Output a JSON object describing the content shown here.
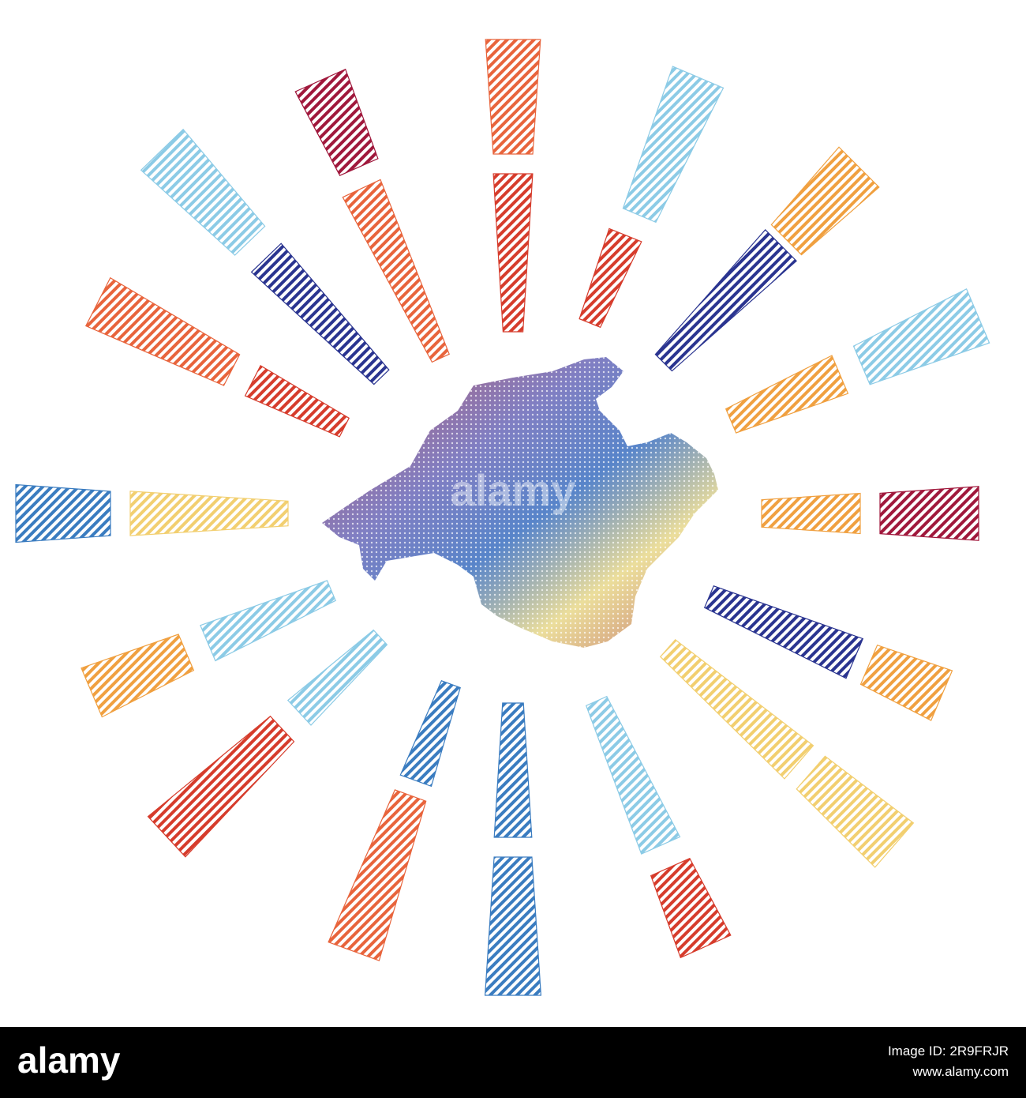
{
  "watermark": "alamy",
  "footer": {
    "logo": "alamy",
    "image_id": "Image ID: 2R9FRJR",
    "url": "www.alamy.com"
  }
}
